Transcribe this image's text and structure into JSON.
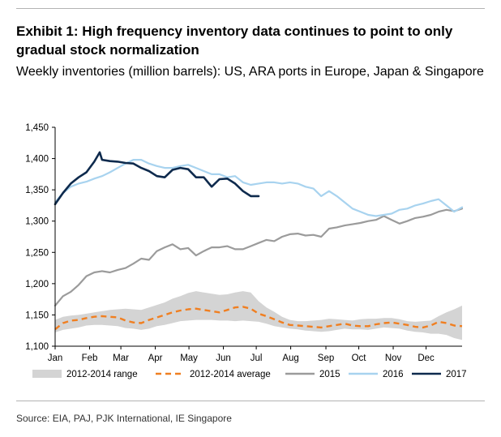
{
  "exhibit": {
    "title": "Exhibit 1: High frequency inventory data continues to point to only gradual stock normalization",
    "subtitle": "Weekly inventories (million barrels): US, ARA ports in Europe, Japan & Singapore",
    "source": "Source: EIA, PAJ, PJK International, IE Singapore"
  },
  "colors": {
    "range": "#d4d4d4",
    "average": "#f07f21",
    "y2015": "#9b9b9b",
    "y2016": "#a8d3ef",
    "y2017": "#0e2a4d",
    "axis": "#000000"
  },
  "chart_data": {
    "type": "line",
    "xlabel": "",
    "ylabel": "",
    "ylim": [
      1100,
      1450
    ],
    "xlim": [
      0,
      52
    ],
    "yticks": [
      1100,
      1150,
      1200,
      1250,
      1300,
      1350,
      1400,
      1450
    ],
    "ytick_labels": [
      "1,100",
      "1,150",
      "1,200",
      "1,250",
      "1,300",
      "1,350",
      "1,400",
      "1,450"
    ],
    "xticks": [
      {
        "week": 0,
        "label": "Jan"
      },
      {
        "week": 4.4,
        "label": "Feb"
      },
      {
        "week": 8.4,
        "label": "Mar"
      },
      {
        "week": 12.8,
        "label": "Apr"
      },
      {
        "week": 17.1,
        "label": "May"
      },
      {
        "week": 21.5,
        "label": "Jun"
      },
      {
        "week": 25.7,
        "label": "Jul"
      },
      {
        "week": 30.1,
        "label": "Aug"
      },
      {
        "week": 34.6,
        "label": "Sep"
      },
      {
        "week": 38.8,
        "label": "Oct"
      },
      {
        "week": 43.2,
        "label": "Nov"
      },
      {
        "week": 47.4,
        "label": "Dec"
      }
    ],
    "grid": false,
    "legend_position": "bottom",
    "series": [
      {
        "name": "2012-2014 range",
        "type": "band",
        "x": [
          0,
          1,
          2,
          3,
          4,
          5,
          6,
          7,
          8,
          9,
          10,
          11,
          12,
          13,
          14,
          15,
          16,
          17,
          18,
          19,
          20,
          21,
          22,
          23,
          24,
          25,
          26,
          27,
          28,
          29,
          30,
          31,
          32,
          33,
          34,
          35,
          36,
          37,
          38,
          39,
          40,
          41,
          42,
          43,
          44,
          45,
          46,
          47,
          48,
          49,
          50,
          51,
          52
        ],
        "low": [
          1122,
          1126,
          1128,
          1130,
          1133,
          1134,
          1134,
          1133,
          1132,
          1129,
          1128,
          1126,
          1128,
          1132,
          1134,
          1137,
          1140,
          1141,
          1142,
          1142,
          1142,
          1141,
          1141,
          1140,
          1141,
          1140,
          1139,
          1136,
          1132,
          1130,
          1128,
          1127,
          1125,
          1124,
          1123,
          1124,
          1126,
          1128,
          1127,
          1127,
          1126,
          1128,
          1130,
          1129,
          1128,
          1125,
          1123,
          1122,
          1120,
          1120,
          1118,
          1113,
          1110
        ],
        "high": [
          1142,
          1147,
          1149,
          1150,
          1152,
          1154,
          1156,
          1158,
          1159,
          1160,
          1159,
          1158,
          1162,
          1166,
          1170,
          1176,
          1180,
          1185,
          1188,
          1186,
          1184,
          1182,
          1183,
          1186,
          1188,
          1186,
          1172,
          1162,
          1155,
          1147,
          1142,
          1140,
          1140,
          1141,
          1142,
          1144,
          1143,
          1142,
          1141,
          1143,
          1144,
          1144,
          1145,
          1145,
          1143,
          1140,
          1139,
          1140,
          1141,
          1148,
          1154,
          1159,
          1165
        ]
      },
      {
        "name": "2012-2014 average",
        "x": [
          0,
          1,
          2,
          3,
          4,
          5,
          6,
          7,
          8,
          9,
          10,
          11,
          12,
          13,
          14,
          15,
          16,
          17,
          18,
          19,
          20,
          21,
          22,
          23,
          24,
          25,
          26,
          27,
          28,
          29,
          30,
          31,
          32,
          33,
          34,
          35,
          36,
          37,
          38,
          39,
          40,
          41,
          42,
          43,
          44,
          45,
          46,
          47,
          48,
          49,
          50,
          51,
          52
        ],
        "values": [
          1127,
          1137,
          1141,
          1142,
          1145,
          1147,
          1148,
          1147,
          1146,
          1141,
          1138,
          1137,
          1142,
          1146,
          1150,
          1154,
          1157,
          1159,
          1160,
          1158,
          1156,
          1154,
          1158,
          1162,
          1163,
          1160,
          1152,
          1148,
          1143,
          1138,
          1134,
          1133,
          1132,
          1131,
          1130,
          1132,
          1134,
          1136,
          1133,
          1132,
          1132,
          1135,
          1137,
          1138,
          1136,
          1134,
          1131,
          1130,
          1133,
          1139,
          1137,
          1133,
          1132
        ]
      },
      {
        "name": "2015",
        "x": [
          0,
          1,
          2,
          3,
          4,
          5,
          6,
          7,
          8,
          9,
          10,
          11,
          12,
          13,
          14,
          15,
          16,
          17,
          18,
          19,
          20,
          21,
          22,
          23,
          24,
          25,
          26,
          27,
          28,
          29,
          30,
          31,
          32,
          33,
          34,
          35,
          36,
          37,
          38,
          39,
          40,
          41,
          42,
          43,
          44,
          45,
          46,
          47,
          48,
          49,
          50,
          51,
          52
        ],
        "values": [
          1165,
          1180,
          1187,
          1198,
          1212,
          1218,
          1220,
          1218,
          1222,
          1225,
          1232,
          1240,
          1238,
          1252,
          1258,
          1263,
          1255,
          1257,
          1245,
          1252,
          1258,
          1258,
          1260,
          1255,
          1255,
          1260,
          1265,
          1270,
          1268,
          1275,
          1279,
          1280,
          1277,
          1278,
          1275,
          1288,
          1290,
          1293,
          1295,
          1297,
          1300,
          1302,
          1308,
          1302,
          1296,
          1300,
          1305,
          1307,
          1310,
          1315,
          1318,
          1316,
          1320
        ]
      },
      {
        "name": "2016",
        "x": [
          0,
          1,
          2,
          3,
          4,
          5,
          6,
          7,
          8,
          9,
          10,
          11,
          12,
          13,
          14,
          15,
          16,
          17,
          18,
          19,
          20,
          21,
          22,
          23,
          24,
          25,
          26,
          27,
          28,
          29,
          30,
          31,
          32,
          33,
          34,
          35,
          36,
          37,
          38,
          39,
          40,
          41,
          42,
          43,
          44,
          45,
          46,
          47,
          48,
          49,
          50,
          51,
          52
        ],
        "values": [
          1330,
          1345,
          1355,
          1360,
          1363,
          1368,
          1372,
          1378,
          1385,
          1392,
          1398,
          1398,
          1392,
          1388,
          1385,
          1385,
          1388,
          1390,
          1385,
          1380,
          1375,
          1375,
          1370,
          1372,
          1362,
          1358,
          1360,
          1362,
          1362,
          1360,
          1362,
          1360,
          1355,
          1352,
          1340,
          1348,
          1340,
          1330,
          1320,
          1315,
          1310,
          1308,
          1310,
          1312,
          1318,
          1320,
          1325,
          1328,
          1332,
          1335,
          1325,
          1315,
          1322
        ]
      },
      {
        "name": "2017",
        "x": [
          0,
          1,
          2,
          3,
          4,
          5,
          5.7,
          6,
          7,
          8,
          9,
          10,
          11,
          12,
          13,
          14,
          15,
          16,
          17,
          18,
          19,
          20,
          21,
          22,
          23,
          24,
          25,
          26
        ],
        "values": [
          1327,
          1345,
          1360,
          1370,
          1378,
          1395,
          1410,
          1398,
          1396,
          1395,
          1393,
          1392,
          1385,
          1380,
          1372,
          1370,
          1382,
          1385,
          1383,
          1370,
          1370,
          1355,
          1367,
          1368,
          1360,
          1348,
          1340,
          1340
        ]
      }
    ]
  },
  "legend": [
    {
      "label": "2012-2014 range",
      "kind": "band",
      "color": "#d4d4d4"
    },
    {
      "label": "2012-2014 average",
      "kind": "dash",
      "color": "#f07f21"
    },
    {
      "label": "2015",
      "kind": "line",
      "color": "#9b9b9b"
    },
    {
      "label": "2016",
      "kind": "line",
      "color": "#a8d3ef"
    },
    {
      "label": "2017",
      "kind": "line",
      "color": "#0e2a4d"
    }
  ]
}
